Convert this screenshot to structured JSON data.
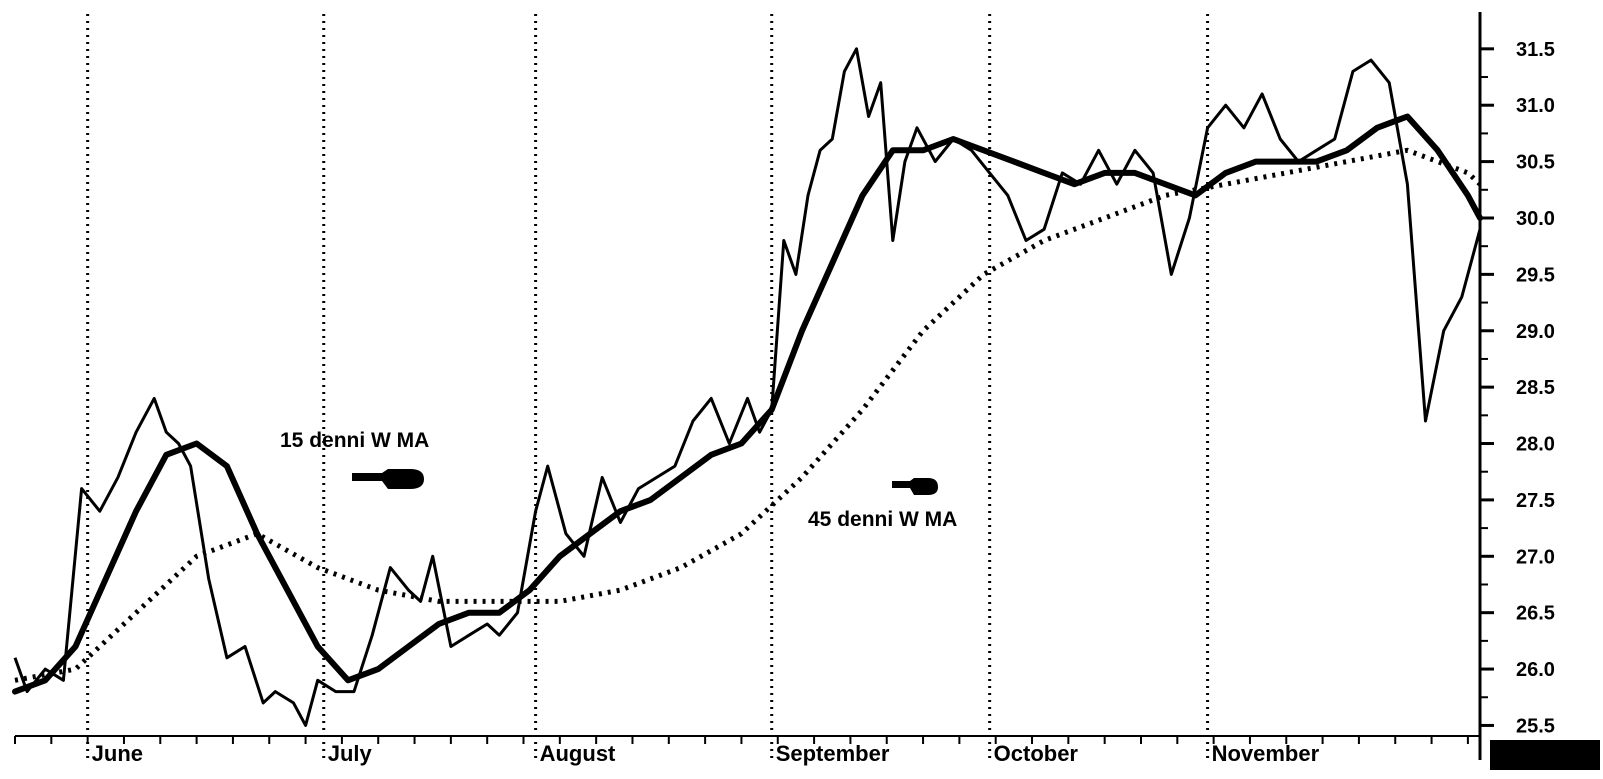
{
  "chart_data": {
    "type": "line",
    "title": "",
    "xlabel": "",
    "ylabel": "",
    "x_months": [
      "June",
      "July",
      "August",
      "September",
      "October",
      "November"
    ],
    "ylim": [
      25.3,
      31.8
    ],
    "y_ticks": [
      "25.5",
      "26.0",
      "26.5",
      "27.0",
      "27.5",
      "28.0",
      "28.5",
      "29.0",
      "29.5",
      "30.0",
      "30.5",
      "31.0",
      "31.5"
    ],
    "y_tick_values": [
      25.5,
      26.0,
      26.5,
      27.0,
      27.5,
      28.0,
      28.5,
      29.0,
      29.5,
      30.0,
      30.5,
      31.0,
      31.5
    ],
    "grid": "vertical dotted lines at month starts",
    "annotations": [
      "15 denni W MA",
      "45 denni W MA"
    ],
    "series": [
      {
        "style": "thin-solid",
        "points": [
          [
            0,
            26.1
          ],
          [
            2,
            25.8
          ],
          [
            5,
            26.0
          ],
          [
            8,
            25.9
          ],
          [
            11,
            27.6
          ],
          [
            14,
            27.4
          ],
          [
            17,
            27.7
          ],
          [
            20,
            28.1
          ],
          [
            23,
            28.4
          ],
          [
            25,
            28.1
          ],
          [
            27,
            28.0
          ],
          [
            29,
            27.8
          ],
          [
            32,
            26.8
          ],
          [
            35,
            26.1
          ],
          [
            38,
            26.2
          ],
          [
            41,
            25.7
          ],
          [
            43,
            25.8
          ],
          [
            46,
            25.7
          ],
          [
            48,
            25.5
          ],
          [
            50,
            25.9
          ],
          [
            53,
            25.8
          ],
          [
            56,
            25.8
          ],
          [
            59,
            26.3
          ],
          [
            62,
            26.9
          ],
          [
            65,
            26.7
          ],
          [
            67,
            26.6
          ],
          [
            69,
            27.0
          ],
          [
            72,
            26.2
          ],
          [
            75,
            26.3
          ],
          [
            78,
            26.4
          ],
          [
            80,
            26.3
          ],
          [
            83,
            26.5
          ],
          [
            86,
            27.4
          ],
          [
            88,
            27.8
          ],
          [
            91,
            27.2
          ],
          [
            94,
            27.0
          ],
          [
            97,
            27.7
          ],
          [
            100,
            27.3
          ],
          [
            103,
            27.6
          ],
          [
            106,
            27.7
          ],
          [
            109,
            27.8
          ],
          [
            112,
            28.2
          ],
          [
            115,
            28.4
          ],
          [
            118,
            28.0
          ],
          [
            121,
            28.4
          ],
          [
            123,
            28.1
          ],
          [
            125,
            28.3
          ],
          [
            127,
            29.8
          ],
          [
            129,
            29.5
          ],
          [
            131,
            30.2
          ],
          [
            133,
            30.6
          ],
          [
            135,
            30.7
          ],
          [
            137,
            31.3
          ],
          [
            139,
            31.5
          ],
          [
            141,
            30.9
          ],
          [
            143,
            31.2
          ],
          [
            145,
            29.8
          ],
          [
            147,
            30.5
          ],
          [
            149,
            30.8
          ],
          [
            152,
            30.5
          ],
          [
            155,
            30.7
          ],
          [
            158,
            30.6
          ],
          [
            161,
            30.4
          ],
          [
            164,
            30.2
          ],
          [
            167,
            29.8
          ],
          [
            170,
            29.9
          ],
          [
            173,
            30.4
          ],
          [
            176,
            30.3
          ],
          [
            179,
            30.6
          ],
          [
            182,
            30.3
          ],
          [
            185,
            30.6
          ],
          [
            188,
            30.4
          ],
          [
            191,
            29.5
          ],
          [
            194,
            30.0
          ],
          [
            197,
            30.8
          ],
          [
            200,
            31.0
          ],
          [
            203,
            30.8
          ],
          [
            206,
            31.1
          ],
          [
            209,
            30.7
          ],
          [
            212,
            30.5
          ],
          [
            215,
            30.6
          ],
          [
            218,
            30.7
          ],
          [
            221,
            31.3
          ],
          [
            224,
            31.4
          ],
          [
            227,
            31.2
          ],
          [
            230,
            30.3
          ],
          [
            233,
            28.2
          ],
          [
            236,
            29.0
          ],
          [
            239,
            29.3
          ],
          [
            242,
            29.9
          ]
        ]
      },
      {
        "style": "thick-solid",
        "points": [
          [
            0,
            25.8
          ],
          [
            5,
            25.9
          ],
          [
            10,
            26.2
          ],
          [
            15,
            26.8
          ],
          [
            20,
            27.4
          ],
          [
            25,
            27.9
          ],
          [
            30,
            28.0
          ],
          [
            35,
            27.8
          ],
          [
            40,
            27.2
          ],
          [
            45,
            26.7
          ],
          [
            50,
            26.2
          ],
          [
            55,
            25.9
          ],
          [
            60,
            26.0
          ],
          [
            65,
            26.2
          ],
          [
            70,
            26.4
          ],
          [
            75,
            26.5
          ],
          [
            80,
            26.5
          ],
          [
            85,
            26.7
          ],
          [
            90,
            27.0
          ],
          [
            95,
            27.2
          ],
          [
            100,
            27.4
          ],
          [
            105,
            27.5
          ],
          [
            110,
            27.7
          ],
          [
            115,
            27.9
          ],
          [
            120,
            28.0
          ],
          [
            125,
            28.3
          ],
          [
            130,
            29.0
          ],
          [
            135,
            29.6
          ],
          [
            140,
            30.2
          ],
          [
            145,
            30.6
          ],
          [
            150,
            30.6
          ],
          [
            155,
            30.7
          ],
          [
            160,
            30.6
          ],
          [
            165,
            30.5
          ],
          [
            170,
            30.4
          ],
          [
            175,
            30.3
          ],
          [
            180,
            30.4
          ],
          [
            185,
            30.4
          ],
          [
            190,
            30.3
          ],
          [
            195,
            30.2
          ],
          [
            200,
            30.4
          ],
          [
            205,
            30.5
          ],
          [
            210,
            30.5
          ],
          [
            215,
            30.5
          ],
          [
            220,
            30.6
          ],
          [
            225,
            30.8
          ],
          [
            230,
            30.9
          ],
          [
            235,
            30.6
          ],
          [
            240,
            30.2
          ],
          [
            242,
            30.0
          ]
        ]
      },
      {
        "style": "dotted",
        "points": [
          [
            0,
            25.9
          ],
          [
            10,
            26.0
          ],
          [
            20,
            26.5
          ],
          [
            30,
            27.0
          ],
          [
            40,
            27.2
          ],
          [
            50,
            26.9
          ],
          [
            60,
            26.7
          ],
          [
            70,
            26.6
          ],
          [
            80,
            26.6
          ],
          [
            90,
            26.6
          ],
          [
            100,
            26.7
          ],
          [
            110,
            26.9
          ],
          [
            120,
            27.2
          ],
          [
            130,
            27.7
          ],
          [
            140,
            28.3
          ],
          [
            150,
            29.0
          ],
          [
            160,
            29.5
          ],
          [
            170,
            29.8
          ],
          [
            180,
            30.0
          ],
          [
            190,
            30.2
          ],
          [
            200,
            30.3
          ],
          [
            210,
            30.4
          ],
          [
            220,
            30.5
          ],
          [
            230,
            30.6
          ],
          [
            240,
            30.4
          ],
          [
            242,
            30.3
          ]
        ]
      }
    ]
  }
}
